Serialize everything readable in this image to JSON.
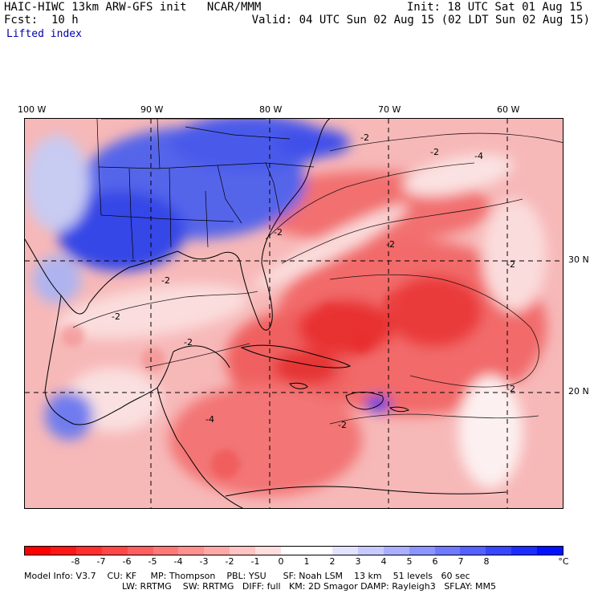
{
  "header": {
    "title_left": "HAIC-HIWC 13km ARW-GFS init   NCAR/MMM",
    "fcst_label": "Fcst:",
    "fcst_value": "10 h",
    "field_name": "Lifted index",
    "init": "Init: 18 UTC Sat 01 Aug 15",
    "valid": "Valid: 04 UTC Sun 02 Aug 15 (02 LDT Sun 02 Aug 15)"
  },
  "map": {
    "lon_labels": [
      "100 W",
      "90 W",
      "80 W",
      "70 W",
      "60 W"
    ],
    "lat_labels": [
      "30 N",
      "20 N"
    ],
    "contour_label": "-2",
    "contour_label_alt": "-4",
    "colors": {
      "ocean_base": "#f7b8b8",
      "strong_unstable": "#ee2a2a",
      "moderate_unstable": "#f46868",
      "weak": "#fbdada",
      "neutral": "#ffffff",
      "stable": "#2a3de8",
      "stable_weak": "#8f9af0"
    }
  },
  "colorbar": {
    "labels": [
      "-8",
      "-7",
      "-6",
      "-5",
      "-4",
      "-3",
      "-2",
      "-1",
      "0",
      "1",
      "2",
      "3",
      "4",
      "5",
      "6",
      "7",
      "8"
    ],
    "unit": "°C",
    "colors": [
      "#ff0000",
      "#ff1616",
      "#ff2f2f",
      "#ff4747",
      "#ff5f5f",
      "#ff7878",
      "#ff9090",
      "#ffa8a8",
      "#ffc4c4",
      "#ffdede",
      "#ffffff",
      "#ffffff",
      "#e2e4ff",
      "#c6caff",
      "#aab0ff",
      "#8c94ff",
      "#707aff",
      "#5460ff",
      "#3846ff",
      "#1c2cff",
      "#0012ff"
    ]
  },
  "footer": {
    "line1": "Model Info: V3.7    CU: KF     MP: Thompson    PBL: YSU      SF: Noah LSM    13 km    51 levels   60 sec",
    "line2": "LW: RRTMG    SW: RRTMG   DIFF: full   KM: 2D Smagor DAMP: Rayleigh3   SFLAY: MM5"
  }
}
